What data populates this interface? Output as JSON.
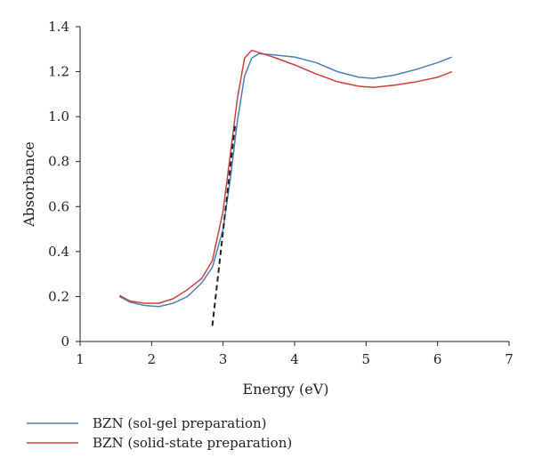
{
  "chart_data": {
    "type": "line",
    "title": "",
    "xlabel": "Energy (eV)",
    "ylabel": "Absorbance",
    "xlim": [
      1,
      7
    ],
    "ylim": [
      0,
      1.4
    ],
    "xticks": [
      1,
      2,
      3,
      4,
      5,
      6,
      7
    ],
    "yticks": [
      0,
      0.2,
      0.4,
      0.6,
      0.8,
      1.0,
      1.2,
      1.4
    ],
    "ytick_labels": [
      "0",
      "0.2",
      "0.4",
      "0.6",
      "0.8",
      "1.0",
      "1.2",
      "1.4"
    ],
    "grid": false,
    "legend_position": "bottom-left",
    "series": [
      {
        "name": "BZN (sol-gel preparation)",
        "color": "#4a7fb8",
        "x": [
          1.55,
          1.7,
          1.9,
          2.1,
          2.3,
          2.5,
          2.7,
          2.85,
          3.0,
          3.1,
          3.2,
          3.3,
          3.4,
          3.5,
          3.7,
          4.0,
          4.3,
          4.6,
          4.9,
          5.1,
          5.4,
          5.7,
          6.0,
          6.2
        ],
        "y": [
          0.2,
          0.175,
          0.16,
          0.155,
          0.17,
          0.2,
          0.26,
          0.33,
          0.5,
          0.72,
          0.98,
          1.18,
          1.26,
          1.28,
          1.275,
          1.265,
          1.24,
          1.2,
          1.175,
          1.17,
          1.185,
          1.21,
          1.24,
          1.265
        ]
      },
      {
        "name": "BZN (solid-state preparation)",
        "color": "#c9413d",
        "x": [
          1.55,
          1.7,
          1.9,
          2.1,
          2.3,
          2.5,
          2.7,
          2.85,
          3.0,
          3.1,
          3.2,
          3.3,
          3.4,
          3.5,
          3.7,
          4.0,
          4.3,
          4.6,
          4.9,
          5.1,
          5.4,
          5.7,
          6.0,
          6.2
        ],
        "y": [
          0.205,
          0.18,
          0.17,
          0.17,
          0.19,
          0.23,
          0.28,
          0.36,
          0.58,
          0.83,
          1.08,
          1.26,
          1.295,
          1.285,
          1.265,
          1.23,
          1.19,
          1.155,
          1.135,
          1.13,
          1.14,
          1.155,
          1.175,
          1.2
        ]
      }
    ],
    "annotations": [
      {
        "type": "dashed-tangent",
        "color": "#222222",
        "x": [
          2.85,
          3.17
        ],
        "y": [
          0.07,
          0.97
        ]
      }
    ]
  }
}
